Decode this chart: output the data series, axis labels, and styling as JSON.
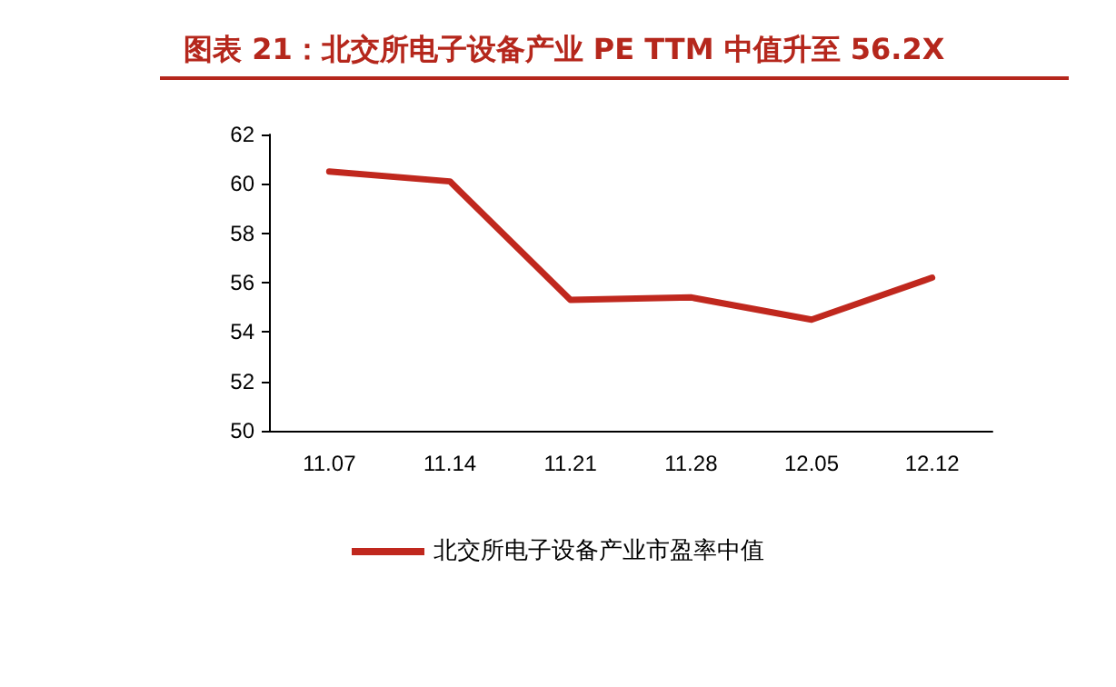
{
  "chart_data": {
    "type": "line",
    "title": "图表 21：北交所电子设备产业 PE TTM 中值升至 56.2X",
    "categories": [
      "11.07",
      "11.14",
      "11.21",
      "11.28",
      "12.05",
      "12.12"
    ],
    "series": [
      {
        "name": "北交所电子设备产业市盈率中值",
        "color": "#c0281e",
        "values": [
          60.5,
          60.1,
          55.3,
          55.4,
          54.5,
          56.2
        ]
      }
    ],
    "ylim": [
      50,
      62
    ],
    "yticks": [
      50,
      52,
      54,
      56,
      58,
      60,
      62
    ],
    "grid": false,
    "legend": "bottom",
    "marker": "none",
    "line_style": "solid"
  }
}
